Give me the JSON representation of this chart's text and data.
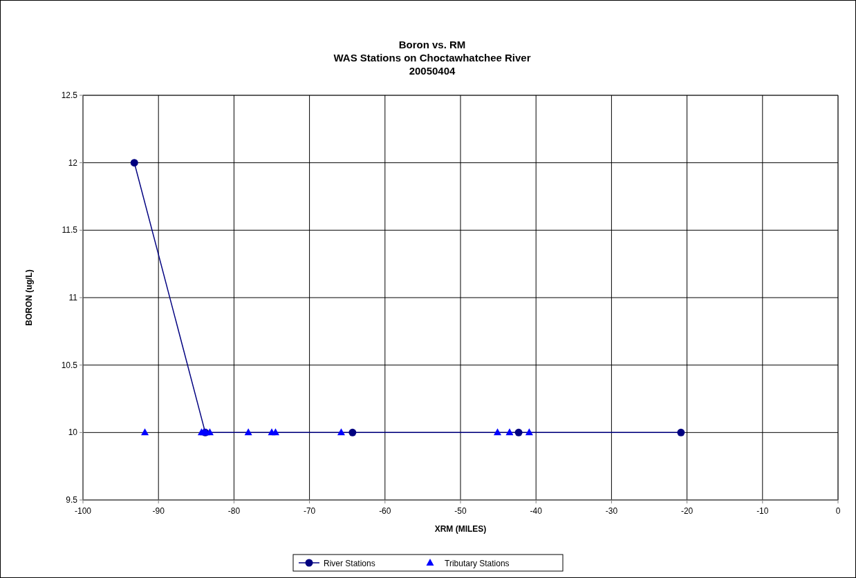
{
  "chart_data": {
    "type": "line",
    "title": "Boron vs. RM",
    "subtitle": "WAS Stations on Choctawhatchee River\n20050404",
    "xlabel": "XRM (MILES)",
    "ylabel": "BORON (ug/L)",
    "xlim": [
      -100,
      0
    ],
    "xticks": [
      -100,
      -90,
      -80,
      -70,
      -60,
      -50,
      -40,
      -30,
      -20,
      -10,
      0
    ],
    "ylim": [
      9.5,
      12.5
    ],
    "yticks": [
      9.5,
      10,
      10.5,
      11,
      11.5,
      12,
      12.5
    ],
    "grid": true,
    "legend": "bottom",
    "series": [
      {
        "name": "River Stations",
        "color": "#000080",
        "marker": "circle",
        "x": [
          -93.2,
          -83.8,
          -64.3,
          -42.3,
          -20.8
        ],
        "values": [
          12,
          10,
          10,
          10,
          10
        ]
      },
      {
        "name": "Tributary Stations",
        "type": "scatter",
        "color": "#0000ff",
        "marker": "triangle",
        "x": [
          -91.8,
          -84.3,
          -84.0,
          -83.7,
          -83.2,
          -78.1,
          -75.0,
          -74.5,
          -65.8,
          -45.1,
          -43.5,
          -40.9
        ],
        "values": [
          10,
          10,
          10,
          10,
          10,
          10,
          10,
          10,
          10,
          10,
          10,
          10
        ]
      }
    ]
  }
}
